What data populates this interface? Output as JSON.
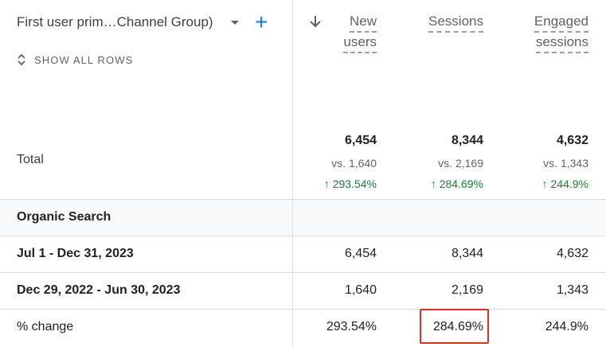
{
  "dimension": {
    "label": "First user prim…Channel Group)",
    "add_icon": "+",
    "show_all_rows": "SHOW ALL ROWS"
  },
  "metrics": [
    {
      "line1": "New",
      "line2": "users"
    },
    {
      "line1": "Sessions",
      "line2": ""
    },
    {
      "line1": "Engaged",
      "line2": "sessions"
    }
  ],
  "total": {
    "label": "Total",
    "values": [
      "6,454",
      "8,344",
      "4,632"
    ],
    "vs": [
      "vs. 1,640",
      "vs. 2,169",
      "vs. 1,343"
    ],
    "change": [
      "↑ 293.54%",
      "↑ 284.69%",
      "↑ 244.9%"
    ]
  },
  "rows": [
    {
      "label": "Organic Search",
      "values": [
        "",
        "",
        ""
      ]
    },
    {
      "label": "Jul 1 - Dec 31, 2023",
      "values": [
        "6,454",
        "8,344",
        "4,632"
      ]
    },
    {
      "label": "Dec 29, 2022 - Jun 30, 2023",
      "values": [
        "1,640",
        "2,169",
        "1,343"
      ]
    },
    {
      "label": "% change",
      "values": [
        "293.54%",
        "284.69%",
        "244.9%"
      ]
    }
  ],
  "colors": {
    "accent": "#1a73e8",
    "positive": "#188038",
    "highlight_box": "#d93025"
  }
}
